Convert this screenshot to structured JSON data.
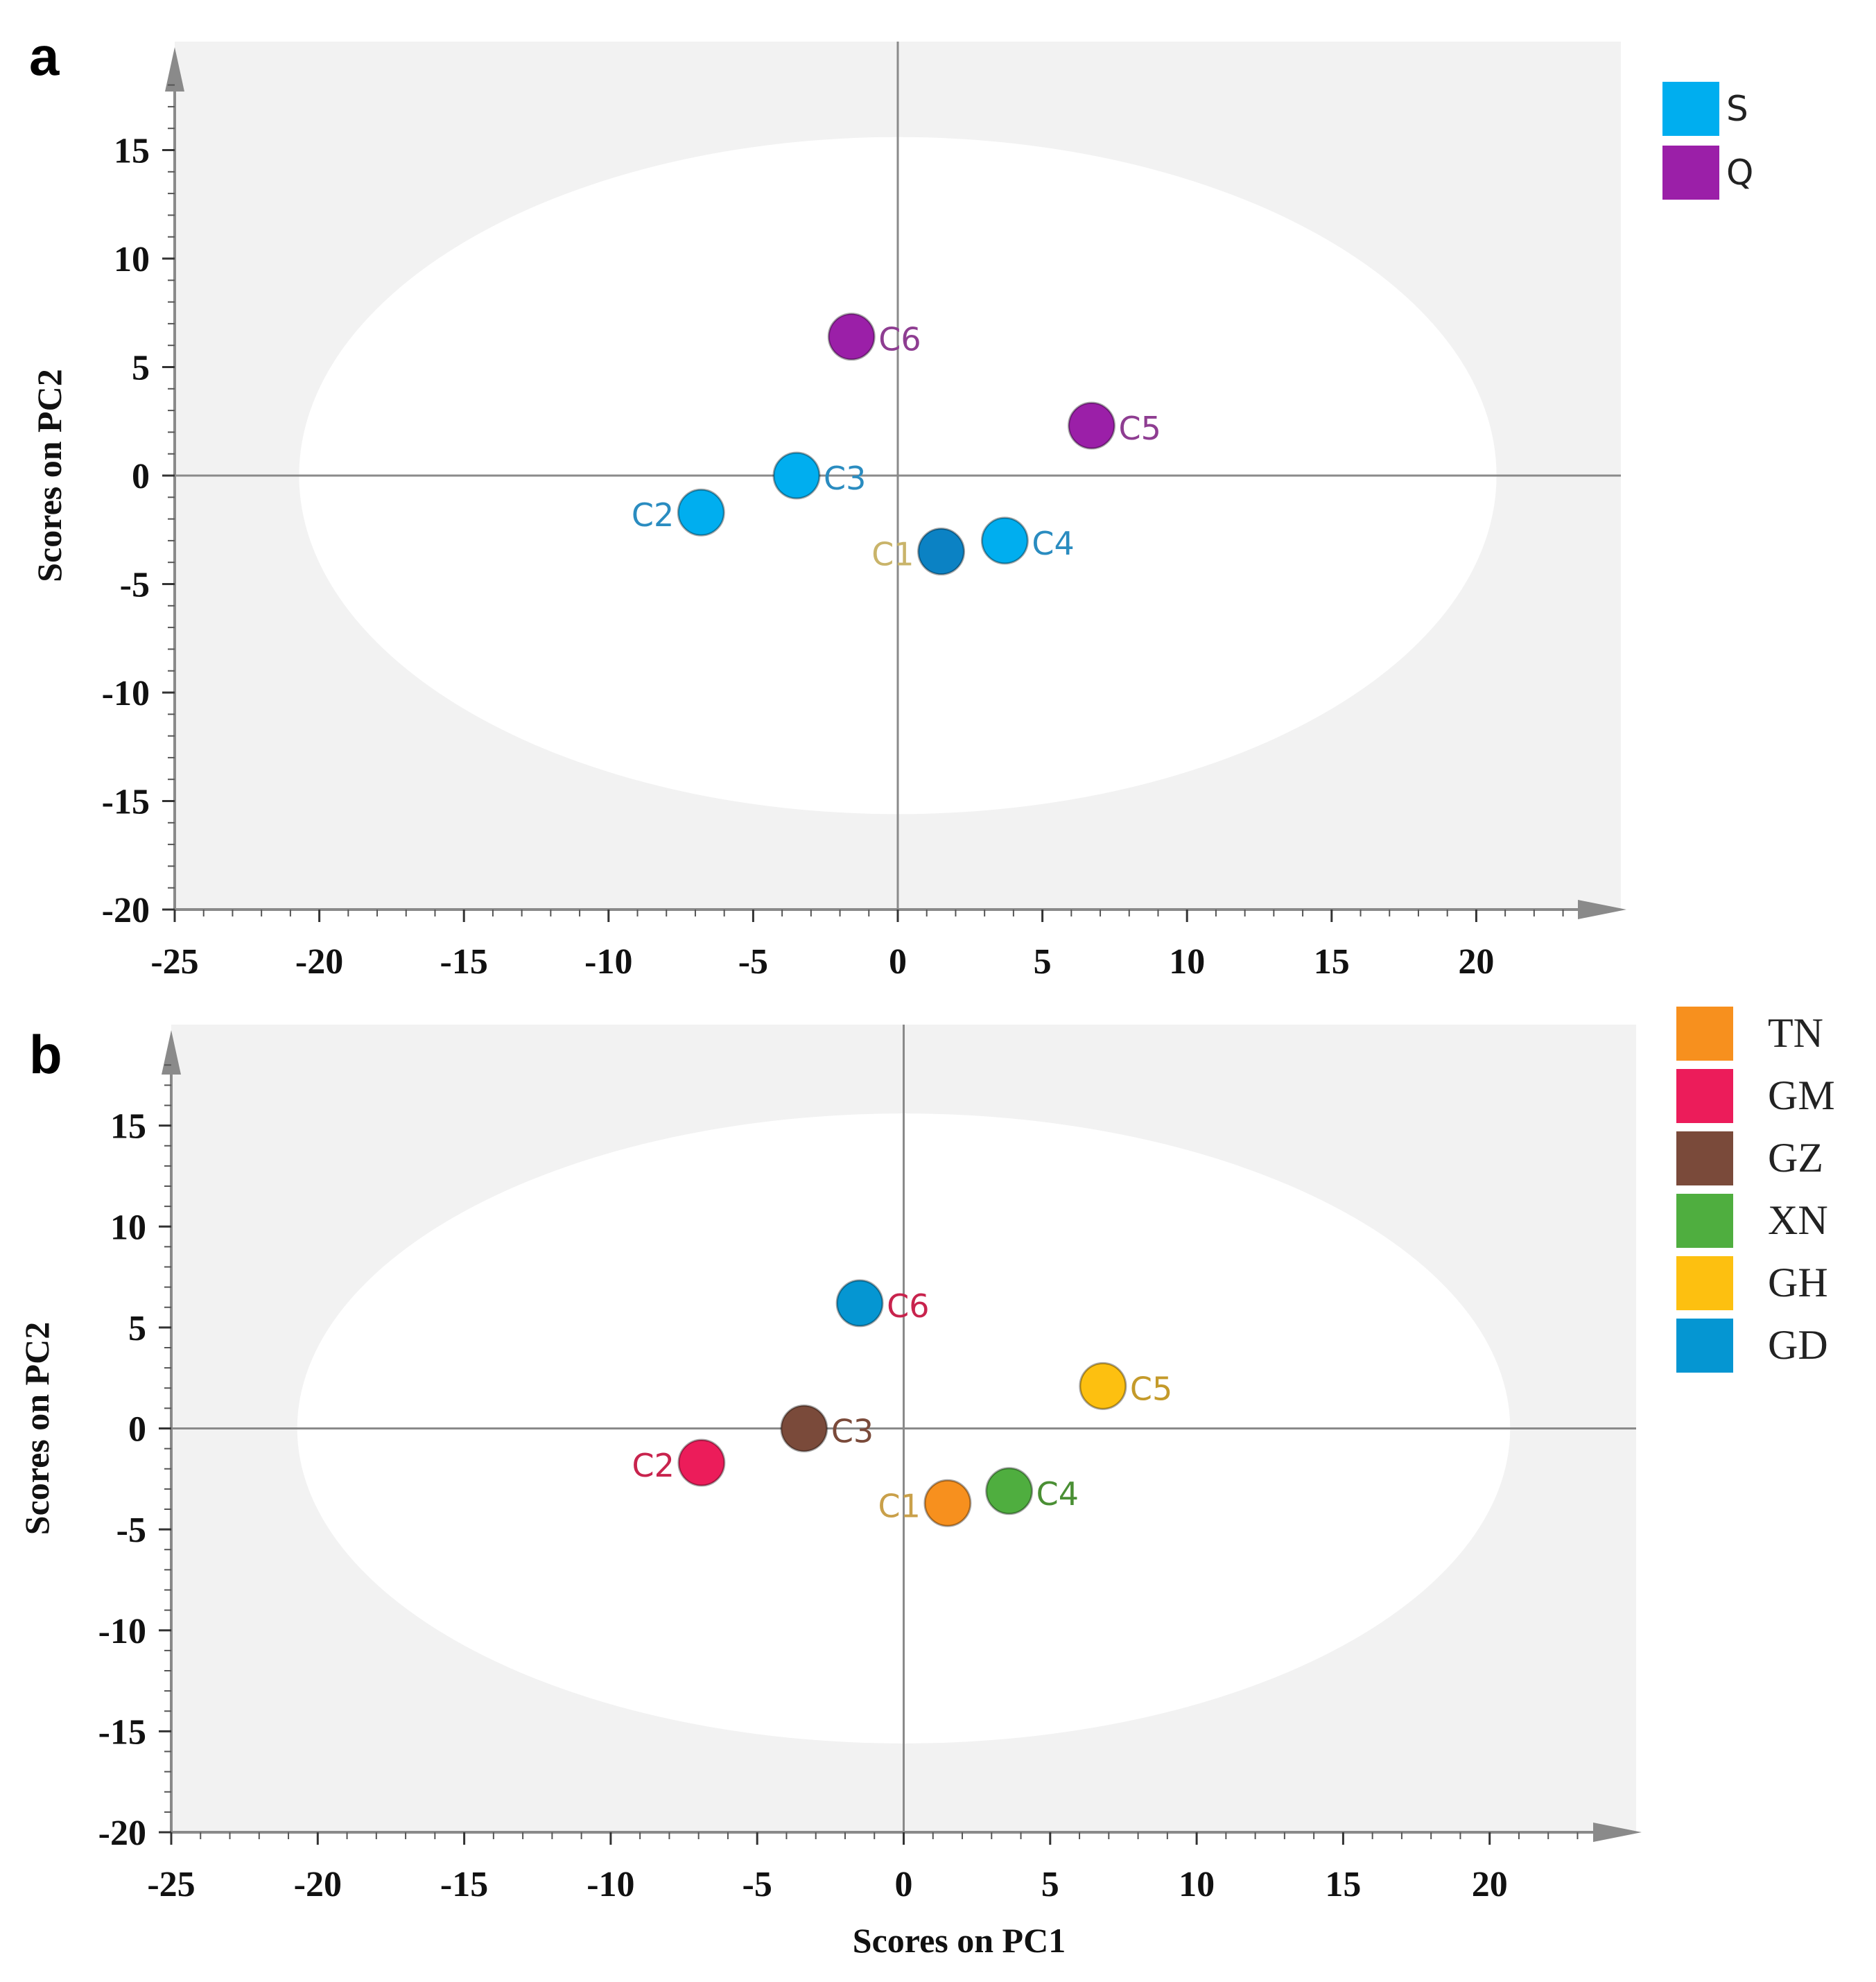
{
  "chart_data": [
    {
      "panel": "a",
      "type": "scatter",
      "xlabel": "",
      "ylabel": "Scores on PC2",
      "xlim": [
        -25,
        25
      ],
      "ylim": [
        -20,
        20
      ],
      "xticks": [
        -25,
        -20,
        -15,
        -10,
        -5,
        0,
        5,
        10,
        15,
        20
      ],
      "yticks": [
        -20,
        -15,
        -10,
        -5,
        0,
        5,
        10,
        15
      ],
      "ellipse": {
        "cx": 0,
        "cy": 0,
        "rx": 20.7,
        "ry": 15.6
      },
      "legend": [
        {
          "name": "S",
          "color": "#00aeef"
        },
        {
          "name": "Q",
          "color": "#9b1fa8"
        }
      ],
      "points": [
        {
          "label": "C1",
          "x": 1.5,
          "y": -3.5,
          "color": "#0b82c4",
          "label_color": "#c9b46a",
          "label_side": "left"
        },
        {
          "label": "C2",
          "x": -6.8,
          "y": -1.7,
          "color": "#00aeef",
          "label_color": "#2a8cc0",
          "label_side": "left"
        },
        {
          "label": "C3",
          "x": -3.5,
          "y": 0,
          "color": "#00aeef",
          "label_color": "#2a8cc0",
          "label_side": "right"
        },
        {
          "label": "C4",
          "x": 3.7,
          "y": -3.0,
          "color": "#00aeef",
          "label_color": "#2a8cc0",
          "label_side": "right"
        },
        {
          "label": "C5",
          "x": 6.7,
          "y": 2.3,
          "color": "#9b1fa8",
          "label_color": "#8e3d91",
          "label_side": "right"
        },
        {
          "label": "C6",
          "x": -1.6,
          "y": 6.4,
          "color": "#9b1fa8",
          "label_color": "#8e3d91",
          "label_side": "right"
        }
      ]
    },
    {
      "panel": "b",
      "type": "scatter",
      "xlabel": "Scores on PC1",
      "ylabel": "Scores on PC2",
      "xlim": [
        -25,
        25
      ],
      "ylim": [
        -20,
        20
      ],
      "xticks": [
        -25,
        -20,
        -15,
        -10,
        -5,
        0,
        5,
        10,
        15,
        20
      ],
      "yticks": [
        -20,
        -15,
        -10,
        -5,
        0,
        5,
        10,
        15
      ],
      "ellipse": {
        "cx": 0,
        "cy": 0,
        "rx": 20.7,
        "ry": 15.6
      },
      "legend": [
        {
          "name": "TN",
          "color": "#f7901e"
        },
        {
          "name": "GM",
          "color": "#ec1c5a"
        },
        {
          "name": "GZ",
          "color": "#7a4a3a"
        },
        {
          "name": "XN",
          "color": "#4fae3f"
        },
        {
          "name": "GH",
          "color": "#fdc010"
        },
        {
          "name": "GD",
          "color": "#0596d2"
        }
      ],
      "points": [
        {
          "label": "C1",
          "x": 1.5,
          "y": -3.7,
          "color": "#f7901e",
          "label_color": "#c9a04a",
          "label_side": "left"
        },
        {
          "label": "C2",
          "x": -6.9,
          "y": -1.7,
          "color": "#ec1c5a",
          "label_color": "#c8234d",
          "label_side": "left"
        },
        {
          "label": "C3",
          "x": -3.4,
          "y": 0,
          "color": "#7a4a3a",
          "label_color": "#7a4a3a",
          "label_side": "right"
        },
        {
          "label": "C4",
          "x": 3.6,
          "y": -3.1,
          "color": "#4fae3f",
          "label_color": "#4a8f34",
          "label_side": "right"
        },
        {
          "label": "C5",
          "x": 6.8,
          "y": 2.1,
          "color": "#fdc010",
          "label_color": "#c49a2a",
          "label_side": "right"
        },
        {
          "label": "C6",
          "x": -1.5,
          "y": 6.2,
          "color": "#0596d2",
          "label_color": "#c8234d",
          "label_side": "right"
        }
      ]
    }
  ]
}
